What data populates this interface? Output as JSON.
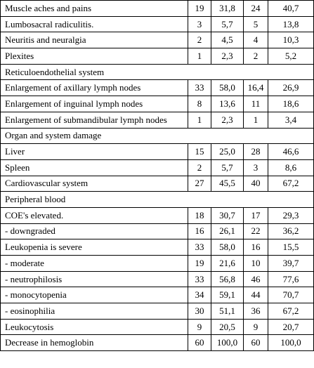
{
  "table": {
    "rows": [
      [
        "Muscle aches and pains",
        "19",
        "31,8",
        "24",
        "40,7"
      ],
      [
        "Lumbosacral radiculitis.",
        "3",
        "5,7",
        "5",
        "13,8"
      ],
      [
        "Neuritis and neuralgia",
        "2",
        "4,5",
        "4",
        "10,3"
      ],
      [
        "Plexites",
        "1",
        "2,3",
        "2",
        "5,2"
      ],
      [
        "Reticuloendothelial system"
      ],
      [
        "Enlargement of axillary lymph nodes",
        "33",
        "58,0",
        "16,4",
        "26,9"
      ],
      [
        "Enlargement of inguinal lymph nodes",
        "8",
        "13,6",
        "11",
        "18,6"
      ],
      [
        "Enlargement of submandibular lymph nodes",
        "1",
        "2,3",
        "1",
        "3,4"
      ],
      [
        "Organ and system damage"
      ],
      [
        "Liver",
        "15",
        "25,0",
        "28",
        "46,6"
      ],
      [
        "Spleen",
        "2",
        "5,7",
        "3",
        "8,6"
      ],
      [
        "Cardiovascular system",
        "27",
        "45,5",
        "40",
        "67,2"
      ],
      [
        "Peripheral blood"
      ],
      [
        "COE's elevated.",
        "18",
        "30,7",
        "17",
        "29,3"
      ],
      [
        "- downgraded",
        "16",
        "26,1",
        "22",
        "36,2"
      ],
      [
        "Leukopenia is severe",
        "33",
        "58,0",
        "16",
        "15,5"
      ],
      [
        "- moderate",
        "19",
        "21,6",
        "10",
        "39,7"
      ],
      [
        "- neutrophilosis",
        "33",
        "56,8",
        "46",
        "77,6"
      ],
      [
        "- monocytopenia",
        "34",
        "59,1",
        "44",
        "70,7"
      ],
      [
        "- eosinophilia",
        "30",
        "51,1",
        "36",
        "67,2"
      ],
      [
        "Leukocytosis",
        "9",
        "20,5",
        "9",
        "20,7"
      ],
      [
        "Decrease in hemoglobin",
        "60",
        "100,0",
        "60",
        "100,0"
      ]
    ]
  }
}
